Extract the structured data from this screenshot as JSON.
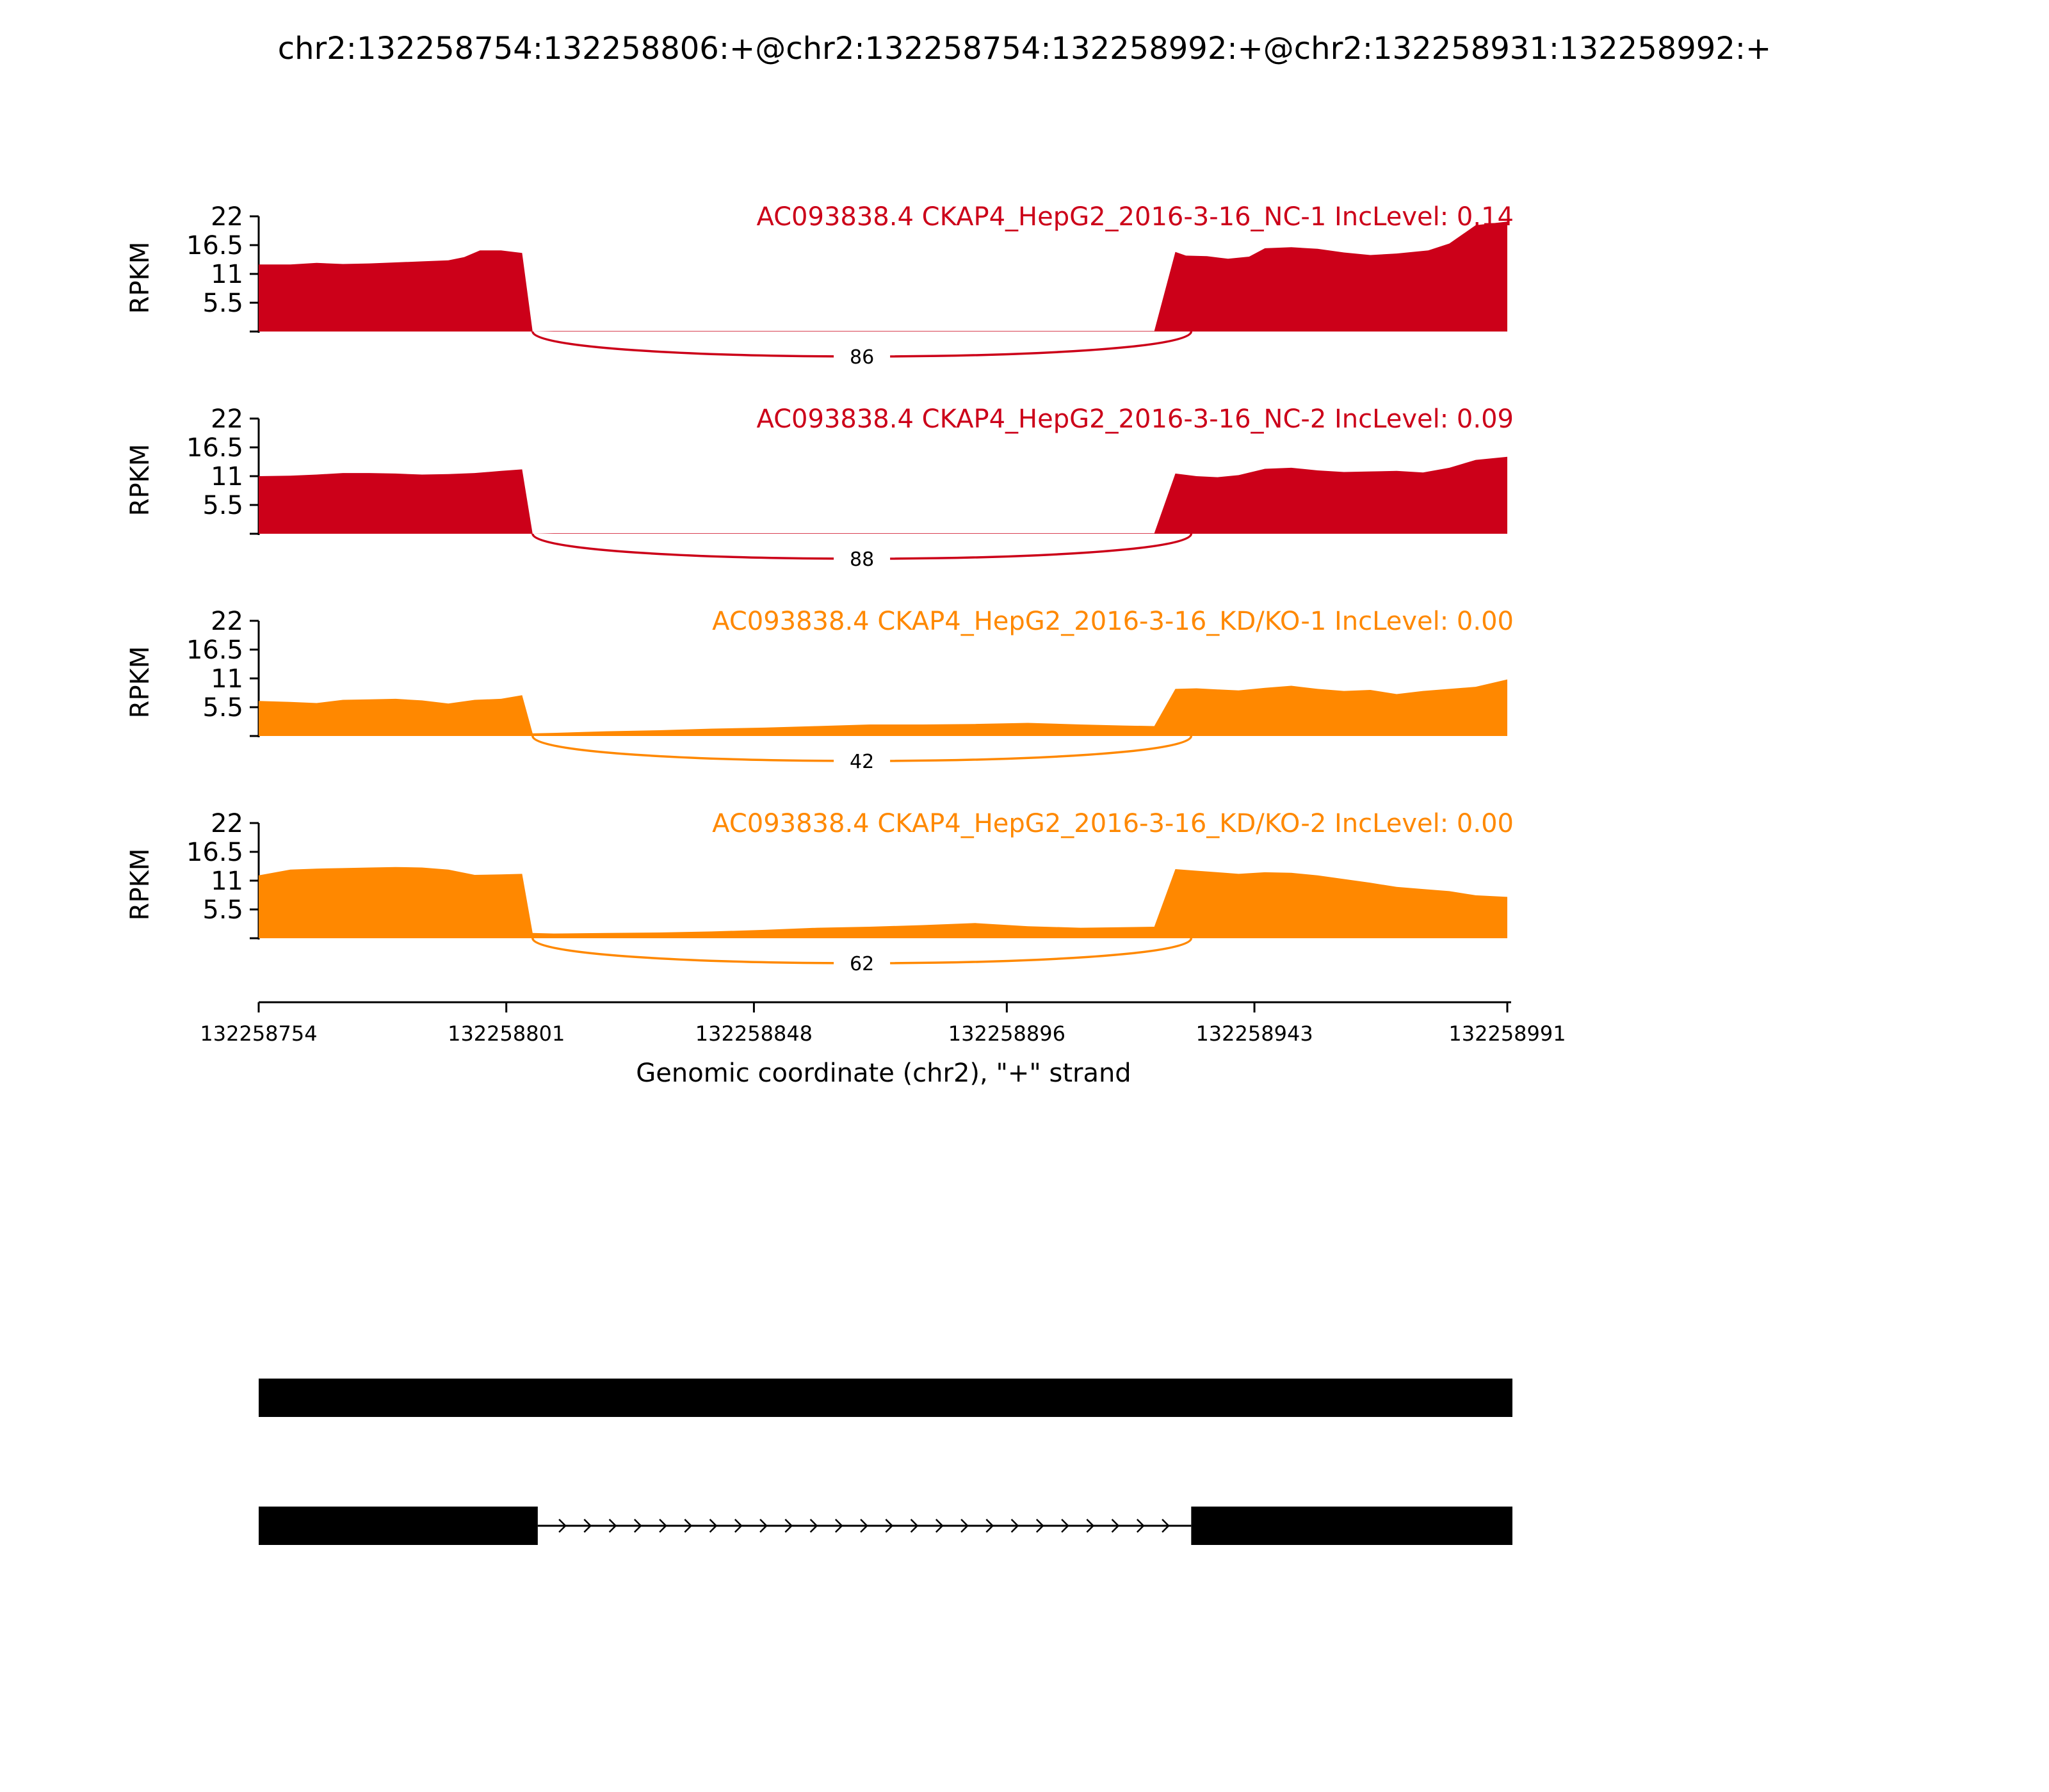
{
  "chart_data": {
    "type": "area",
    "title": "chr2:132258754:132258806:+@chr2:132258754:132258992:+@chr2:132258931:132258992:+",
    "xlabel": "Genomic coordinate (chr2), \"+\" strand",
    "ylabel": "RPKM",
    "xlim": [
      132258754,
      132258991
    ],
    "ylim": [
      0,
      22
    ],
    "xticks": [
      "132258754",
      "132258801",
      "132258848",
      "132258896",
      "132258943",
      "132258991"
    ],
    "yticks": [
      "22",
      "16.5",
      "11",
      "5.5"
    ],
    "colors": {
      "nc": "#cc0019",
      "kd": "#ff8800"
    },
    "tracks": [
      {
        "label": "AC093838.4 CKAP4_HepG2_2016-3-16_NC-1 IncLevel: 0.14",
        "color": "#cc0019",
        "junction_count": "86",
        "x": [
          132258754,
          132258760,
          132258765,
          132258770,
          132258775,
          132258780,
          132258785,
          132258790,
          132258793,
          132258796,
          132258800,
          132258804,
          132258806,
          132258810,
          132258825,
          132258840,
          132258860,
          132258880,
          132258900,
          132258924,
          132258928,
          132258930,
          132258934,
          132258938,
          132258942,
          132258945,
          132258950,
          132258955,
          132258960,
          132258965,
          132258970,
          132258976,
          132258980,
          132258985,
          132258991
        ],
        "values": [
          12.8,
          12.8,
          13.1,
          12.9,
          13.0,
          13.2,
          13.4,
          13.6,
          14.2,
          15.5,
          15.5,
          15.0,
          0.0,
          0.1,
          0.1,
          0.1,
          0.1,
          0.1,
          0.1,
          0.1,
          15.2,
          14.5,
          14.4,
          13.9,
          14.3,
          15.9,
          16.1,
          15.8,
          15.1,
          14.6,
          14.9,
          15.5,
          16.8,
          20.3,
          21.0
        ]
      },
      {
        "label": "AC093838.4 CKAP4_HepG2_2016-3-16_NC-2 IncLevel: 0.09",
        "color": "#cc0019",
        "junction_count": "88",
        "x": [
          132258754,
          132258760,
          132258765,
          132258770,
          132258775,
          132258780,
          132258785,
          132258790,
          132258795,
          132258800,
          132258804,
          132258806,
          132258810,
          132258830,
          132258860,
          132258890,
          132258924,
          132258928,
          132258932,
          132258936,
          132258940,
          132258945,
          132258950,
          132258955,
          132258960,
          132258965,
          132258970,
          132258975,
          132258980,
          132258985,
          132258991
        ],
        "values": [
          11.0,
          11.1,
          11.3,
          11.6,
          11.6,
          11.5,
          11.3,
          11.4,
          11.6,
          12.0,
          12.3,
          0.0,
          0.1,
          0.1,
          0.1,
          0.1,
          0.1,
          11.5,
          11.0,
          10.8,
          11.2,
          12.4,
          12.6,
          12.1,
          11.8,
          11.9,
          12.0,
          11.7,
          12.6,
          14.1,
          14.7
        ]
      },
      {
        "label": "AC093838.4 CKAP4_HepG2_2016-3-16_KD/KO-1 IncLevel: 0.00",
        "color": "#ff8800",
        "junction_count": "42",
        "x": [
          132258754,
          132258760,
          132258765,
          132258770,
          132258775,
          132258780,
          132258785,
          132258790,
          132258795,
          132258800,
          132258804,
          132258806,
          132258810,
          132258820,
          132258830,
          132258840,
          132258850,
          132258860,
          132258870,
          132258880,
          132258890,
          132258900,
          132258910,
          132258918,
          132258924,
          132258928,
          132258932,
          132258936,
          132258940,
          132258945,
          132258950,
          132258955,
          132258960,
          132258965,
          132258970,
          132258975,
          132258980,
          132258985,
          132258991
        ],
        "values": [
          6.7,
          6.5,
          6.3,
          6.9,
          7.0,
          7.1,
          6.8,
          6.2,
          6.9,
          7.1,
          7.8,
          0.5,
          0.6,
          0.9,
          1.1,
          1.4,
          1.6,
          1.9,
          2.2,
          2.2,
          2.3,
          2.5,
          2.2,
          2.0,
          1.9,
          9.0,
          9.1,
          8.9,
          8.7,
          9.2,
          9.6,
          9.0,
          8.6,
          8.8,
          8.0,
          8.6,
          9.0,
          9.4,
          10.8
        ]
      },
      {
        "label": "AC093838.4 CKAP4_HepG2_2016-3-16_KD/KO-2 IncLevel: 0.00",
        "color": "#ff8800",
        "junction_count": "62",
        "x": [
          132258754,
          132258760,
          132258765,
          132258770,
          132258775,
          132258780,
          132258785,
          132258790,
          132258795,
          132258800,
          132258804,
          132258806,
          132258810,
          132258820,
          132258830,
          132258840,
          132258850,
          132258860,
          132258870,
          132258880,
          132258890,
          132258900,
          132258910,
          132258918,
          132258924,
          132258928,
          132258932,
          132258936,
          132258940,
          132258945,
          132258950,
          132258955,
          132258960,
          132258965,
          132258970,
          132258975,
          132258980,
          132258985,
          132258991
        ],
        "values": [
          12.0,
          13.1,
          13.3,
          13.4,
          13.5,
          13.6,
          13.5,
          13.1,
          12.1,
          12.2,
          12.3,
          1.0,
          0.9,
          1.0,
          1.1,
          1.3,
          1.6,
          2.0,
          2.2,
          2.5,
          2.9,
          2.3,
          2.0,
          2.1,
          2.2,
          13.2,
          12.9,
          12.6,
          12.3,
          12.6,
          12.5,
          12.0,
          11.3,
          10.6,
          9.8,
          9.4,
          9.0,
          8.2,
          7.9
        ]
      }
    ],
    "gene_models": [
      {
        "exons": [
          [
            132258754,
            132258991
          ]
        ]
      },
      {
        "exons": [
          [
            132258754,
            132258806
          ],
          [
            132258931,
            132258991
          ]
        ]
      }
    ]
  }
}
